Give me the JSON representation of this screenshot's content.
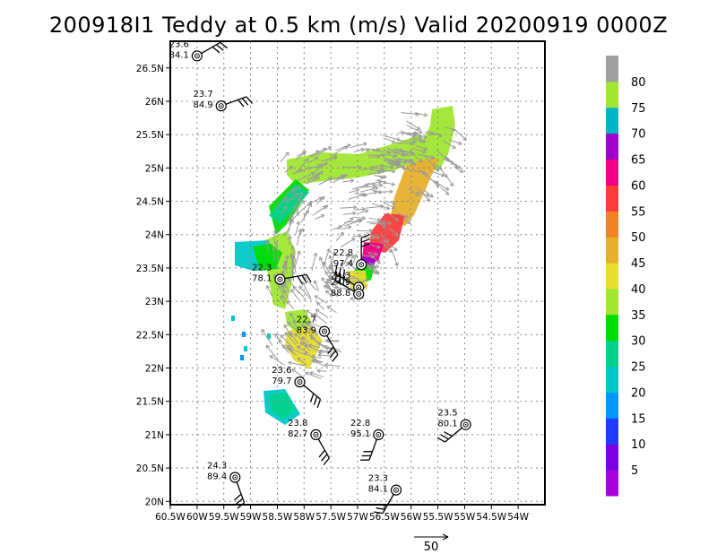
{
  "chart_data": {
    "type": "scatter",
    "title": "200918I1 Teddy at 0.5 km (m/s) Valid 20200919 0000Z",
    "x_ticks": [
      "60.5W",
      "60W",
      "59.5W",
      "59W",
      "58.5W",
      "58W",
      "57.5W",
      "57W",
      "56.5W",
      "56W",
      "55.5W",
      "55W",
      "54.5W",
      "54W"
    ],
    "y_ticks": [
      "20N",
      "20.5N",
      "21N",
      "21.5N",
      "22N",
      "22.5N",
      "23N",
      "23.5N",
      "24N",
      "24.5N",
      "25N",
      "25.5N",
      "26N",
      "26.5N"
    ],
    "xlim": [
      -60.5,
      -53.5
    ],
    "ylim": [
      19.95,
      26.9
    ],
    "grid": true,
    "colorbar": {
      "labels": [
        "5",
        "10",
        "15",
        "20",
        "25",
        "30",
        "35",
        "40",
        "45",
        "50",
        "55",
        "60",
        "65",
        "70",
        "75",
        "80"
      ],
      "colors": [
        "#a800d8",
        "#7a00e0",
        "#1e3cff",
        "#0096ff",
        "#00c8c8",
        "#00d28c",
        "#00dc00",
        "#a0e632",
        "#e6dc32",
        "#e6af2d",
        "#f08228",
        "#fa3c3c",
        "#f00082",
        "#a000c8",
        "#00b4c8",
        "#a0e632",
        "#a0a0a0"
      ]
    },
    "reference_vector": {
      "label": "50"
    },
    "stations": [
      {
        "lon": -60.0,
        "lat": 26.68,
        "top": "23.6",
        "bottom": "84.1"
      },
      {
        "lon": -59.55,
        "lat": 25.93,
        "top": "23.7",
        "bottom": "84.9"
      },
      {
        "lon": -58.45,
        "lat": 23.33,
        "top": "22.3",
        "bottom": "78.1"
      },
      {
        "lon": -56.93,
        "lat": 23.55,
        "top": "22.8",
        "bottom": "97.4"
      },
      {
        "lon": -56.98,
        "lat": 23.21,
        "top": "24.3",
        "bottom": ""
      },
      {
        "lon": -56.98,
        "lat": 23.11,
        "top": "24.9",
        "bottom": "88.8"
      },
      {
        "lon": -57.62,
        "lat": 22.55,
        "top": "22.7",
        "bottom": "83.9"
      },
      {
        "lon": -58.08,
        "lat": 21.79,
        "top": "23.6",
        "bottom": "79.7"
      },
      {
        "lon": -57.78,
        "lat": 21.0,
        "top": "23.8",
        "bottom": "82.7"
      },
      {
        "lon": -56.61,
        "lat": 21.0,
        "top": "22.8",
        "bottom": "95.1"
      },
      {
        "lon": -54.98,
        "lat": 21.15,
        "top": "23.5",
        "bottom": "80.1"
      },
      {
        "lon": -59.29,
        "lat": 20.36,
        "top": "24.3",
        "bottom": "89.4"
      },
      {
        "lon": -56.28,
        "lat": 20.17,
        "top": "23.3",
        "bottom": "84.1"
      }
    ]
  }
}
